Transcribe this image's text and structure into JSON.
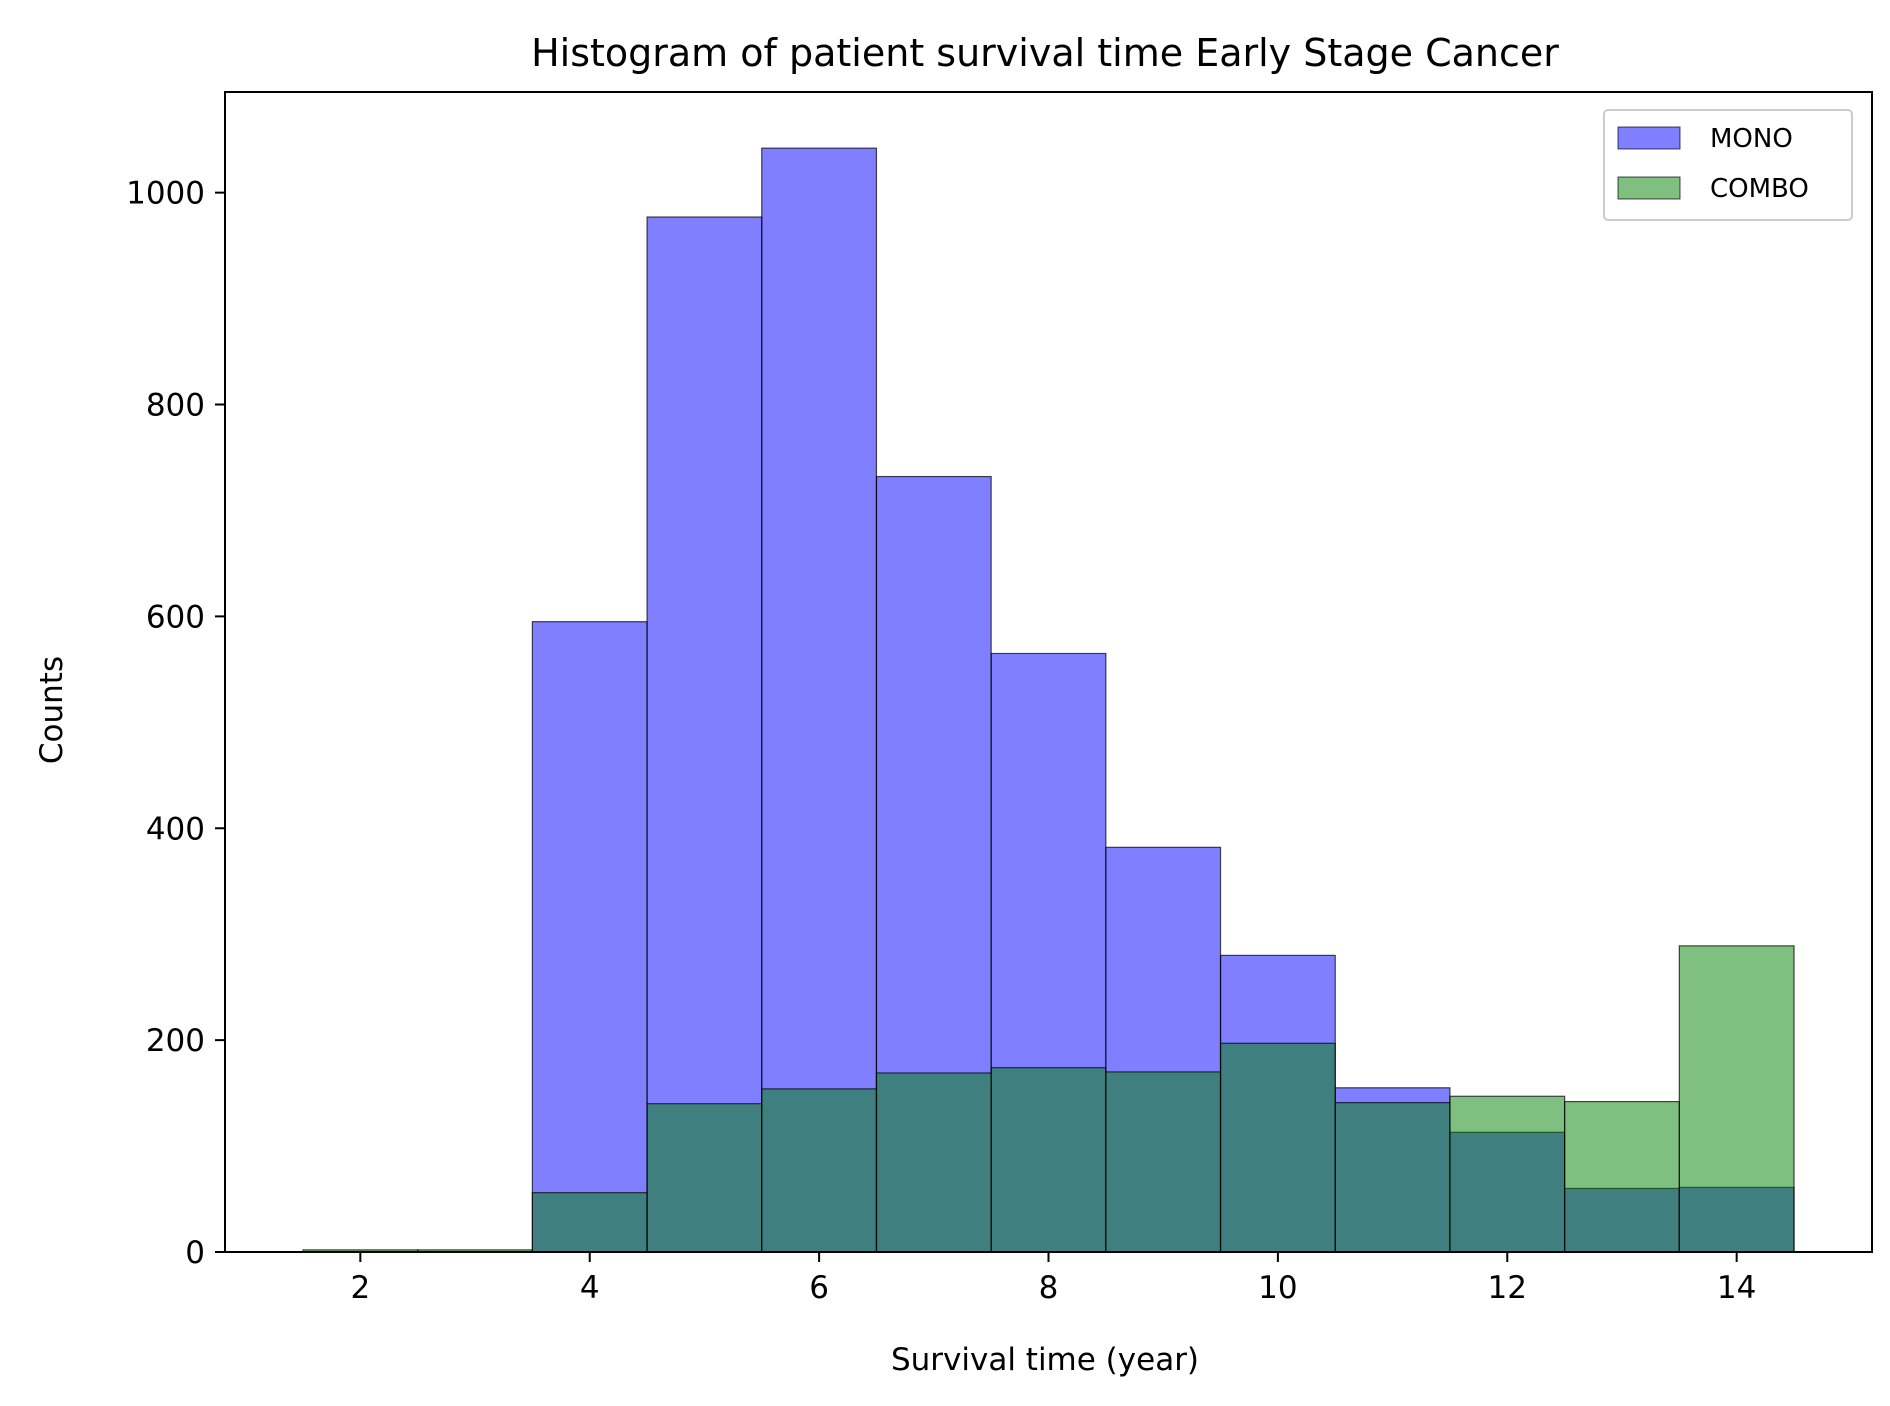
{
  "chart_data": {
    "type": "bar",
    "title": "Histogram of patient survival time Early Stage Cancer",
    "xlabel": "Survival time (year)",
    "ylabel": "Counts",
    "xlim": [
      0.82,
      15.18
    ],
    "ylim": [
      0,
      1095
    ],
    "x_ticks": [
      2,
      4,
      6,
      8,
      10,
      12,
      14
    ],
    "y_ticks": [
      0,
      200,
      400,
      600,
      800,
      1000
    ],
    "bin_edges": [
      1.5,
      2.5,
      3.5,
      4.5,
      5.5,
      6.5,
      7.5,
      8.5,
      9.5,
      10.5,
      11.5,
      12.5,
      13.5,
      14.5
    ],
    "grid": false,
    "legend_position": "top-right",
    "series": [
      {
        "name": "MONO",
        "color": "#0000ff",
        "alpha": 0.5,
        "values": [
          0,
          0,
          595,
          977,
          1042,
          732,
          565,
          382,
          280,
          155,
          113,
          60,
          61
        ]
      },
      {
        "name": "COMBO",
        "color": "#008000",
        "alpha": 0.5,
        "values": [
          2,
          2,
          56,
          140,
          154,
          169,
          174,
          170,
          197,
          141,
          147,
          142,
          289
        ]
      }
    ]
  }
}
